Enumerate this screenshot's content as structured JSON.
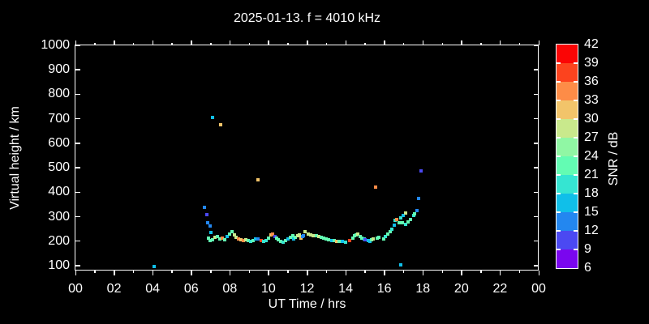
{
  "title": "2025-01-13. f = 4010 kHz",
  "axes": {
    "x": {
      "label": "UT Time / hrs",
      "tick_labels": [
        "00",
        "02",
        "04",
        "06",
        "08",
        "10",
        "12",
        "14",
        "16",
        "18",
        "20",
        "22",
        "00"
      ],
      "tick_hours": [
        0,
        2,
        4,
        6,
        8,
        10,
        12,
        14,
        16,
        18,
        20,
        22,
        24
      ]
    },
    "y": {
      "label": "Virtual height / km",
      "tick_values": [
        1000,
        900,
        800,
        700,
        600,
        500,
        400,
        300,
        200,
        100
      ]
    }
  },
  "colorbar": {
    "label": "SNR / dB",
    "tick_labels": [
      "42",
      "39",
      "36",
      "33",
      "30",
      "27",
      "24",
      "21",
      "18",
      "15",
      "12",
      "9",
      "6"
    ],
    "min": 6,
    "max": 42,
    "step": 3,
    "colors_low_to_high": [
      "#7a06ef",
      "#4b49f2",
      "#2387f0",
      "#10bfe9",
      "#35e5d2",
      "#63fcb3",
      "#90f7a4",
      "#c9e98c",
      "#f2c46a",
      "#fd8c47",
      "#fc431e",
      "#fb0505"
    ]
  },
  "chart_data": {
    "type": "scatter",
    "title": "2025-01-13. f = 4010 kHz",
    "xlabel": "UT Time / hrs",
    "ylabel": "Virtual height / km",
    "colorbar_label": "SNR / dB",
    "xlim": [
      0,
      24
    ],
    "ylim": [
      80,
      1000
    ],
    "grid": false,
    "marker": "square-4px",
    "point_format": [
      "time_hours",
      "virtual_height_km",
      "snr_db"
    ],
    "points": [
      [
        4.08,
        97,
        16
      ],
      [
        6.68,
        338,
        13
      ],
      [
        6.81,
        308,
        10
      ],
      [
        6.85,
        275,
        13
      ],
      [
        6.98,
        262,
        13
      ],
      [
        7.02,
        236,
        16
      ],
      [
        7.1,
        706,
        16
      ],
      [
        7.52,
        676,
        31
      ],
      [
        6.89,
        213,
        22
      ],
      [
        6.98,
        203,
        22
      ],
      [
        7.1,
        206,
        22
      ],
      [
        7.23,
        216,
        28
      ],
      [
        7.36,
        219,
        22
      ],
      [
        7.48,
        209,
        22
      ],
      [
        7.61,
        213,
        34
      ],
      [
        7.73,
        206,
        22
      ],
      [
        7.86,
        219,
        16
      ],
      [
        7.99,
        229,
        22
      ],
      [
        8.11,
        239,
        22
      ],
      [
        8.24,
        226,
        28
      ],
      [
        8.32,
        216,
        28
      ],
      [
        8.45,
        209,
        34
      ],
      [
        8.57,
        206,
        31
      ],
      [
        8.7,
        203,
        34
      ],
      [
        8.83,
        206,
        28
      ],
      [
        8.95,
        203,
        22
      ],
      [
        9.08,
        199,
        19
      ],
      [
        9.21,
        203,
        22
      ],
      [
        9.33,
        209,
        16
      ],
      [
        9.46,
        209,
        13
      ],
      [
        9.63,
        203,
        37
      ],
      [
        9.75,
        199,
        19
      ],
      [
        9.88,
        203,
        19
      ],
      [
        10.0,
        213,
        22
      ],
      [
        10.13,
        226,
        31
      ],
      [
        10.21,
        229,
        34
      ],
      [
        10.34,
        219,
        10
      ],
      [
        10.42,
        213,
        22
      ],
      [
        10.51,
        206,
        22
      ],
      [
        10.63,
        199,
        22
      ],
      [
        10.76,
        196,
        19
      ],
      [
        10.89,
        203,
        22
      ],
      [
        11.01,
        209,
        16
      ],
      [
        11.14,
        216,
        22
      ],
      [
        11.27,
        223,
        22
      ],
      [
        11.31,
        209,
        16
      ],
      [
        11.39,
        216,
        22
      ],
      [
        11.52,
        223,
        28
      ],
      [
        11.6,
        226,
        28
      ],
      [
        11.68,
        213,
        31
      ],
      [
        11.77,
        219,
        13
      ],
      [
        11.81,
        223,
        13
      ],
      [
        11.9,
        239,
        28
      ],
      [
        12.06,
        229,
        28
      ],
      [
        12.19,
        226,
        28
      ],
      [
        12.32,
        223,
        28
      ],
      [
        12.48,
        223,
        22
      ],
      [
        12.61,
        219,
        28
      ],
      [
        12.73,
        216,
        22
      ],
      [
        12.86,
        213,
        22
      ],
      [
        12.99,
        209,
        22
      ],
      [
        13.11,
        206,
        22
      ],
      [
        13.28,
        203,
        16
      ],
      [
        13.41,
        203,
        22
      ],
      [
        13.53,
        199,
        31
      ],
      [
        13.66,
        199,
        22
      ],
      [
        13.83,
        199,
        16
      ],
      [
        14.0,
        196,
        19
      ],
      [
        14.21,
        203,
        37
      ],
      [
        14.37,
        213,
        22
      ],
      [
        14.46,
        223,
        22
      ],
      [
        14.54,
        226,
        22
      ],
      [
        14.63,
        229,
        28
      ],
      [
        14.75,
        219,
        22
      ],
      [
        14.84,
        213,
        22
      ],
      [
        14.96,
        209,
        19
      ],
      [
        15.0,
        206,
        10
      ],
      [
        15.17,
        203,
        16
      ],
      [
        15.26,
        199,
        16
      ],
      [
        15.34,
        206,
        22
      ],
      [
        15.43,
        209,
        28
      ],
      [
        15.64,
        213,
        22
      ],
      [
        15.72,
        216,
        22
      ],
      [
        9.46,
        451,
        31
      ],
      [
        15.55,
        421,
        34
      ],
      [
        15.97,
        209,
        22
      ],
      [
        16.06,
        219,
        19
      ],
      [
        16.18,
        229,
        22
      ],
      [
        16.31,
        239,
        22
      ],
      [
        16.39,
        249,
        19
      ],
      [
        16.52,
        265,
        16
      ],
      [
        16.56,
        285,
        19
      ],
      [
        16.65,
        289,
        34
      ],
      [
        16.77,
        275,
        22
      ],
      [
        16.86,
        295,
        19
      ],
      [
        16.94,
        275,
        22
      ],
      [
        16.98,
        305,
        16
      ],
      [
        17.11,
        315,
        28
      ],
      [
        17.11,
        269,
        19
      ],
      [
        17.23,
        279,
        22
      ],
      [
        17.36,
        289,
        22
      ],
      [
        17.53,
        305,
        19
      ],
      [
        17.57,
        312,
        22
      ],
      [
        17.7,
        325,
        13
      ],
      [
        17.78,
        373,
        13
      ],
      [
        17.91,
        487,
        10
      ],
      [
        16.86,
        103,
        16
      ]
    ]
  }
}
